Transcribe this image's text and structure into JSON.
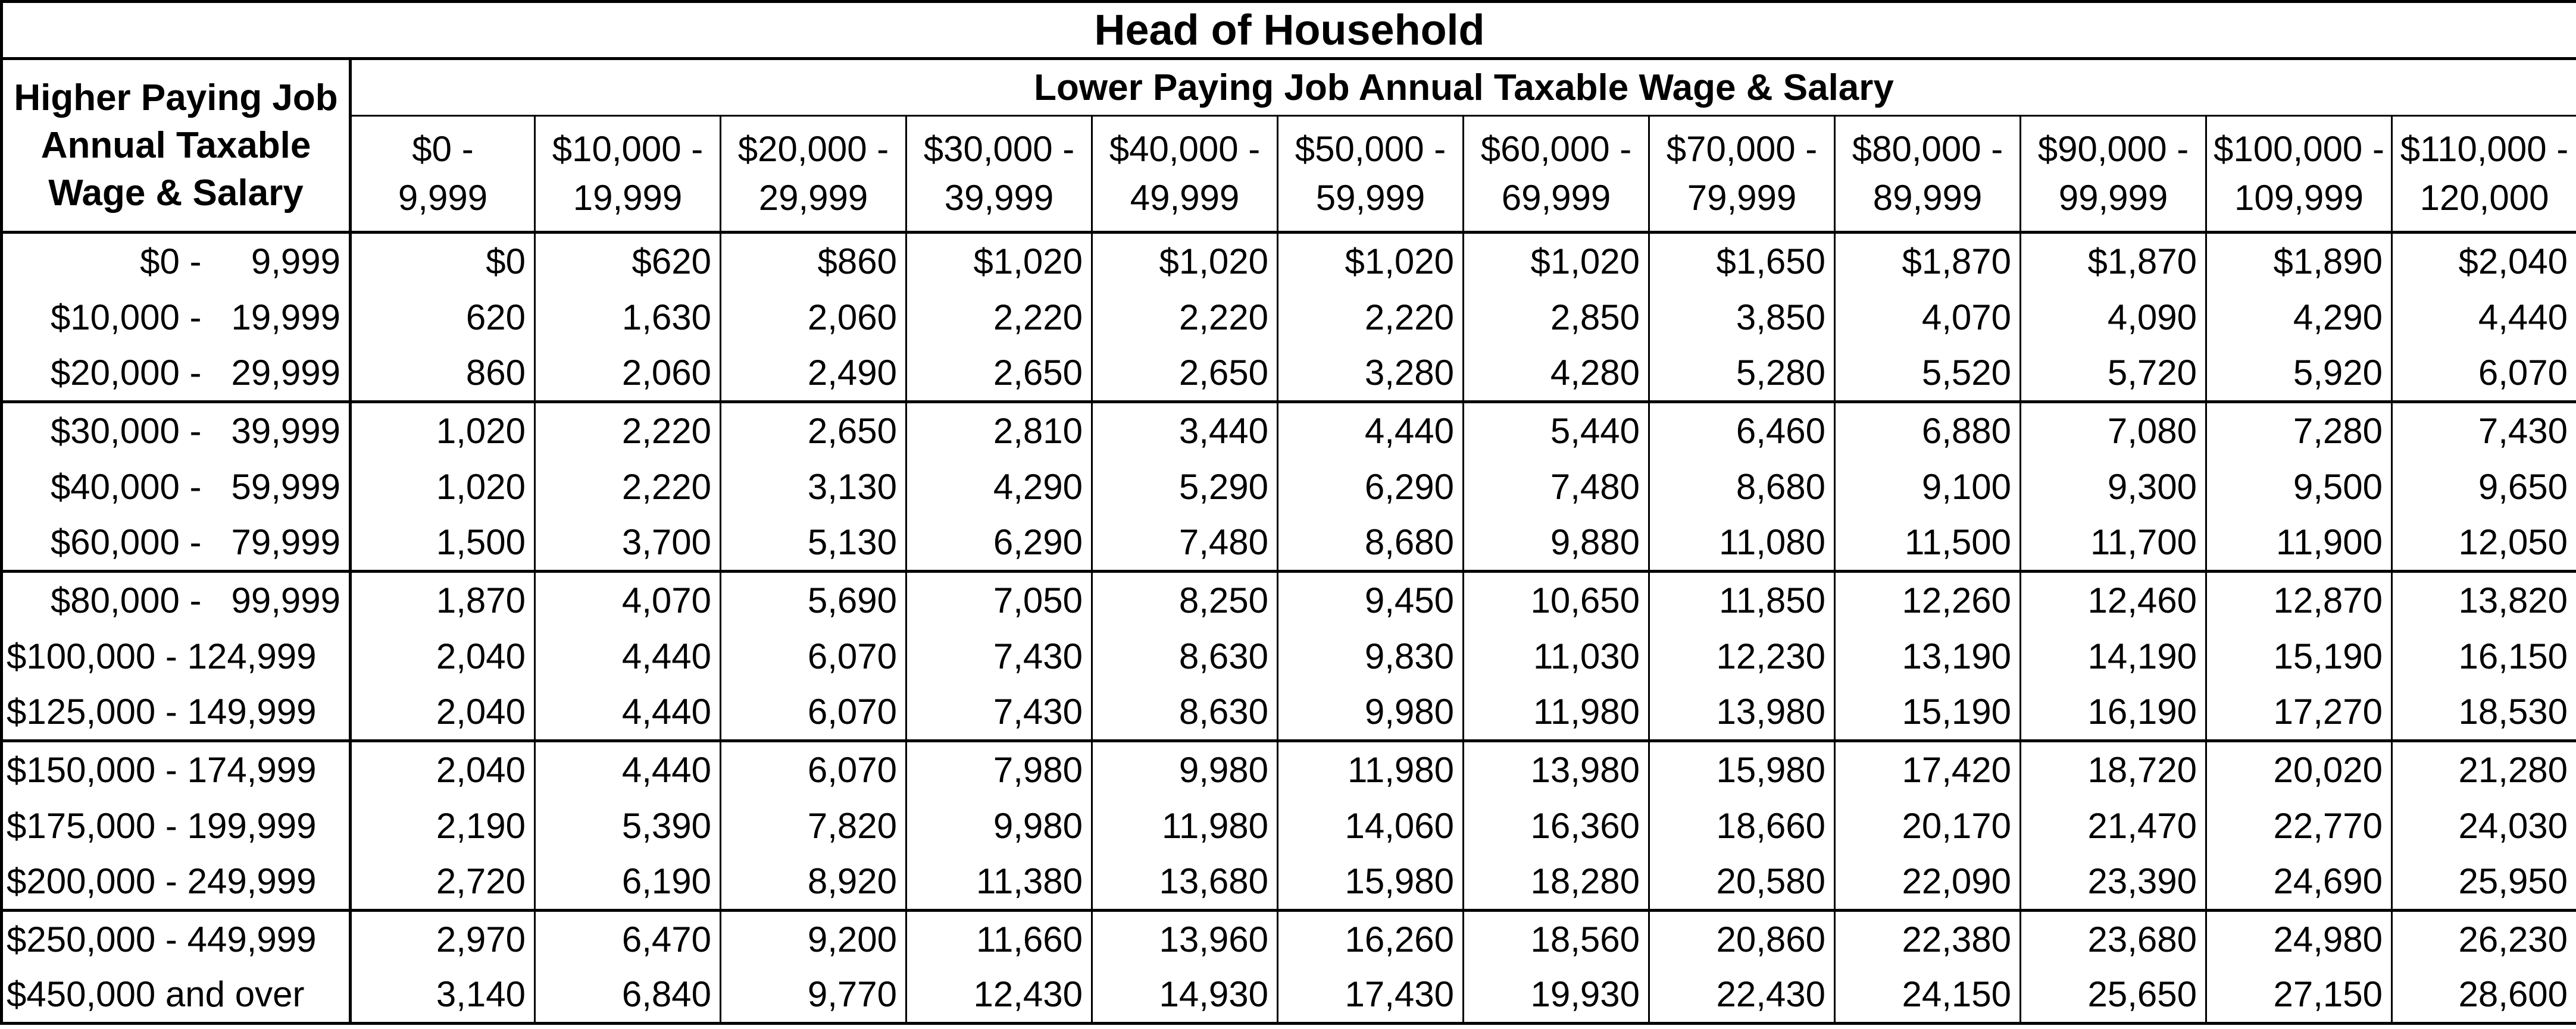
{
  "title": "Head of Household",
  "corner_header": [
    "Higher Paying Job",
    "Annual Taxable",
    "Wage & Salary"
  ],
  "super_header": "Lower Paying Job Annual Taxable Wage & Salary",
  "columns": [
    [
      "$0 -",
      "9,999"
    ],
    [
      "$10,000 -",
      "19,999"
    ],
    [
      "$20,000 -",
      "29,999"
    ],
    [
      "$30,000 -",
      "39,999"
    ],
    [
      "$40,000 -",
      "49,999"
    ],
    [
      "$50,000 -",
      "59,999"
    ],
    [
      "$60,000 -",
      "69,999"
    ],
    [
      "$70,000 -",
      "79,999"
    ],
    [
      "$80,000 -",
      "89,999"
    ],
    [
      "$90,000 -",
      "99,999"
    ],
    [
      "$100,000 -",
      "109,999"
    ],
    [
      "$110,000 -",
      "120,000"
    ]
  ],
  "rows": [
    {
      "label": "$0 -     9,999",
      "values": [
        "$0",
        "$620",
        "$860",
        "$1,020",
        "$1,020",
        "$1,020",
        "$1,020",
        "$1,650",
        "$1,870",
        "$1,870",
        "$1,890",
        "$2,040"
      ]
    },
    {
      "label": "$10,000 -   19,999",
      "values": [
        "620",
        "1,630",
        "2,060",
        "2,220",
        "2,220",
        "2,220",
        "2,850",
        "3,850",
        "4,070",
        "4,090",
        "4,290",
        "4,440"
      ]
    },
    {
      "label": "$20,000 -   29,999",
      "values": [
        "860",
        "2,060",
        "2,490",
        "2,650",
        "2,650",
        "3,280",
        "4,280",
        "5,280",
        "5,520",
        "5,720",
        "5,920",
        "6,070"
      ]
    },
    {
      "label": "$30,000 -   39,999",
      "values": [
        "1,020",
        "2,220",
        "2,650",
        "2,810",
        "3,440",
        "4,440",
        "5,440",
        "6,460",
        "6,880",
        "7,080",
        "7,280",
        "7,430"
      ]
    },
    {
      "label": "$40,000 -   59,999",
      "values": [
        "1,020",
        "2,220",
        "3,130",
        "4,290",
        "5,290",
        "6,290",
        "7,480",
        "8,680",
        "9,100",
        "9,300",
        "9,500",
        "9,650"
      ]
    },
    {
      "label": "$60,000 -   79,999",
      "values": [
        "1,500",
        "3,700",
        "5,130",
        "6,290",
        "7,480",
        "8,680",
        "9,880",
        "11,080",
        "11,500",
        "11,700",
        "11,900",
        "12,050"
      ]
    },
    {
      "label": "$80,000 -   99,999",
      "values": [
        "1,870",
        "4,070",
        "5,690",
        "7,050",
        "8,250",
        "9,450",
        "10,650",
        "11,850",
        "12,260",
        "12,460",
        "12,870",
        "13,820"
      ]
    },
    {
      "label": "$100,000 - 124,999",
      "values": [
        "2,040",
        "4,440",
        "6,070",
        "7,430",
        "8,630",
        "9,830",
        "11,030",
        "12,230",
        "13,190",
        "14,190",
        "15,190",
        "16,150"
      ]
    },
    {
      "label": "$125,000 - 149,999",
      "values": [
        "2,040",
        "4,440",
        "6,070",
        "7,430",
        "8,630",
        "9,980",
        "11,980",
        "13,980",
        "15,190",
        "16,190",
        "17,270",
        "18,530"
      ]
    },
    {
      "label": "$150,000 - 174,999",
      "values": [
        "2,040",
        "4,440",
        "6,070",
        "7,980",
        "9,980",
        "11,980",
        "13,980",
        "15,980",
        "17,420",
        "18,720",
        "20,020",
        "21,280"
      ]
    },
    {
      "label": "$175,000 - 199,999",
      "values": [
        "2,190",
        "5,390",
        "7,820",
        "9,980",
        "11,980",
        "14,060",
        "16,360",
        "18,660",
        "20,170",
        "21,470",
        "22,770",
        "24,030"
      ]
    },
    {
      "label": "$200,000 - 249,999",
      "values": [
        "2,720",
        "6,190",
        "8,920",
        "11,380",
        "13,680",
        "15,980",
        "18,280",
        "20,580",
        "22,090",
        "23,390",
        "24,690",
        "25,950"
      ]
    },
    {
      "label": "$250,000 - 449,999",
      "values": [
        "2,970",
        "6,470",
        "9,200",
        "11,660",
        "13,960",
        "16,260",
        "18,560",
        "20,860",
        "22,380",
        "23,680",
        "24,980",
        "26,230"
      ]
    },
    {
      "label": "$450,000 and over",
      "values": [
        "3,140",
        "6,840",
        "9,770",
        "12,430",
        "14,930",
        "17,430",
        "19,930",
        "22,430",
        "24,150",
        "25,650",
        "27,150",
        "28,600"
      ]
    }
  ]
}
